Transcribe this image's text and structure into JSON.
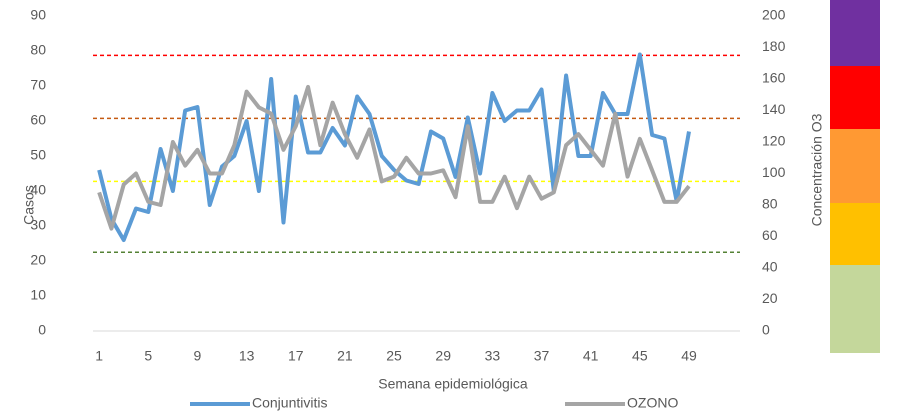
{
  "chart_data": {
    "type": "line",
    "x_label": "Semana epidemiológica",
    "y_label": "Casos",
    "y2_label": "Concentración O3",
    "categories": [
      "1",
      null,
      null,
      null,
      "5",
      null,
      null,
      null,
      "9",
      null,
      null,
      null,
      "13",
      null,
      null,
      null,
      "17",
      null,
      null,
      null,
      "21",
      null,
      null,
      null,
      "25",
      null,
      null,
      null,
      "29",
      null,
      null,
      null,
      "33",
      null,
      null,
      null,
      "37",
      null,
      null,
      null,
      "41",
      null,
      null,
      null,
      "45",
      null,
      null,
      null,
      "49",
      null,
      null,
      null
    ],
    "series": [
      {
        "name": "Conjuntivitis",
        "color": "#5b9bd5",
        "values": [
          46,
          32,
          26,
          35,
          34,
          52,
          40,
          63,
          64,
          36,
          47,
          50,
          60,
          40,
          72,
          31,
          67,
          51,
          51,
          58,
          53,
          67,
          62,
          50,
          46,
          43,
          42,
          57,
          55,
          44,
          61,
          45,
          68,
          60,
          63,
          63,
          69,
          40,
          73,
          50,
          50,
          68,
          62,
          62,
          79,
          56,
          55,
          37,
          57,
          null,
          null,
          null
        ]
      },
      {
        "name": "OZONO",
        "color": "#a5a5a5",
        "axis": "y2",
        "values": [
          88,
          65,
          93,
          100,
          82,
          80,
          120,
          105,
          115,
          100,
          100,
          118,
          152,
          142,
          138,
          115,
          130,
          155,
          118,
          145,
          125,
          110,
          128,
          95,
          98,
          110,
          100,
          100,
          102,
          85,
          130,
          82,
          82,
          98,
          78,
          98,
          84,
          88,
          118,
          125,
          115,
          105,
          138,
          98,
          122,
          102,
          82,
          82,
          92,
          null,
          null,
          null
        ]
      }
    ],
    "ylim": [
      0,
      90
    ],
    "yticks": [
      0,
      10,
      20,
      30,
      40,
      50,
      60,
      70,
      80,
      90
    ],
    "y2lim": [
      0,
      200
    ],
    "y2ticks": [
      0,
      20,
      40,
      60,
      80,
      100,
      120,
      140,
      160,
      180,
      200
    ],
    "grid": false,
    "legend": "bottom",
    "reference_lines": [
      {
        "value": 175,
        "color": "#ff0000",
        "axis": "y2"
      },
      {
        "value": 135,
        "color": "#c55a11",
        "axis": "y2"
      },
      {
        "value": 95,
        "color": "#ffff00",
        "axis": "y2"
      },
      {
        "value": 50,
        "color": "#548235",
        "axis": "y2"
      }
    ]
  }
}
